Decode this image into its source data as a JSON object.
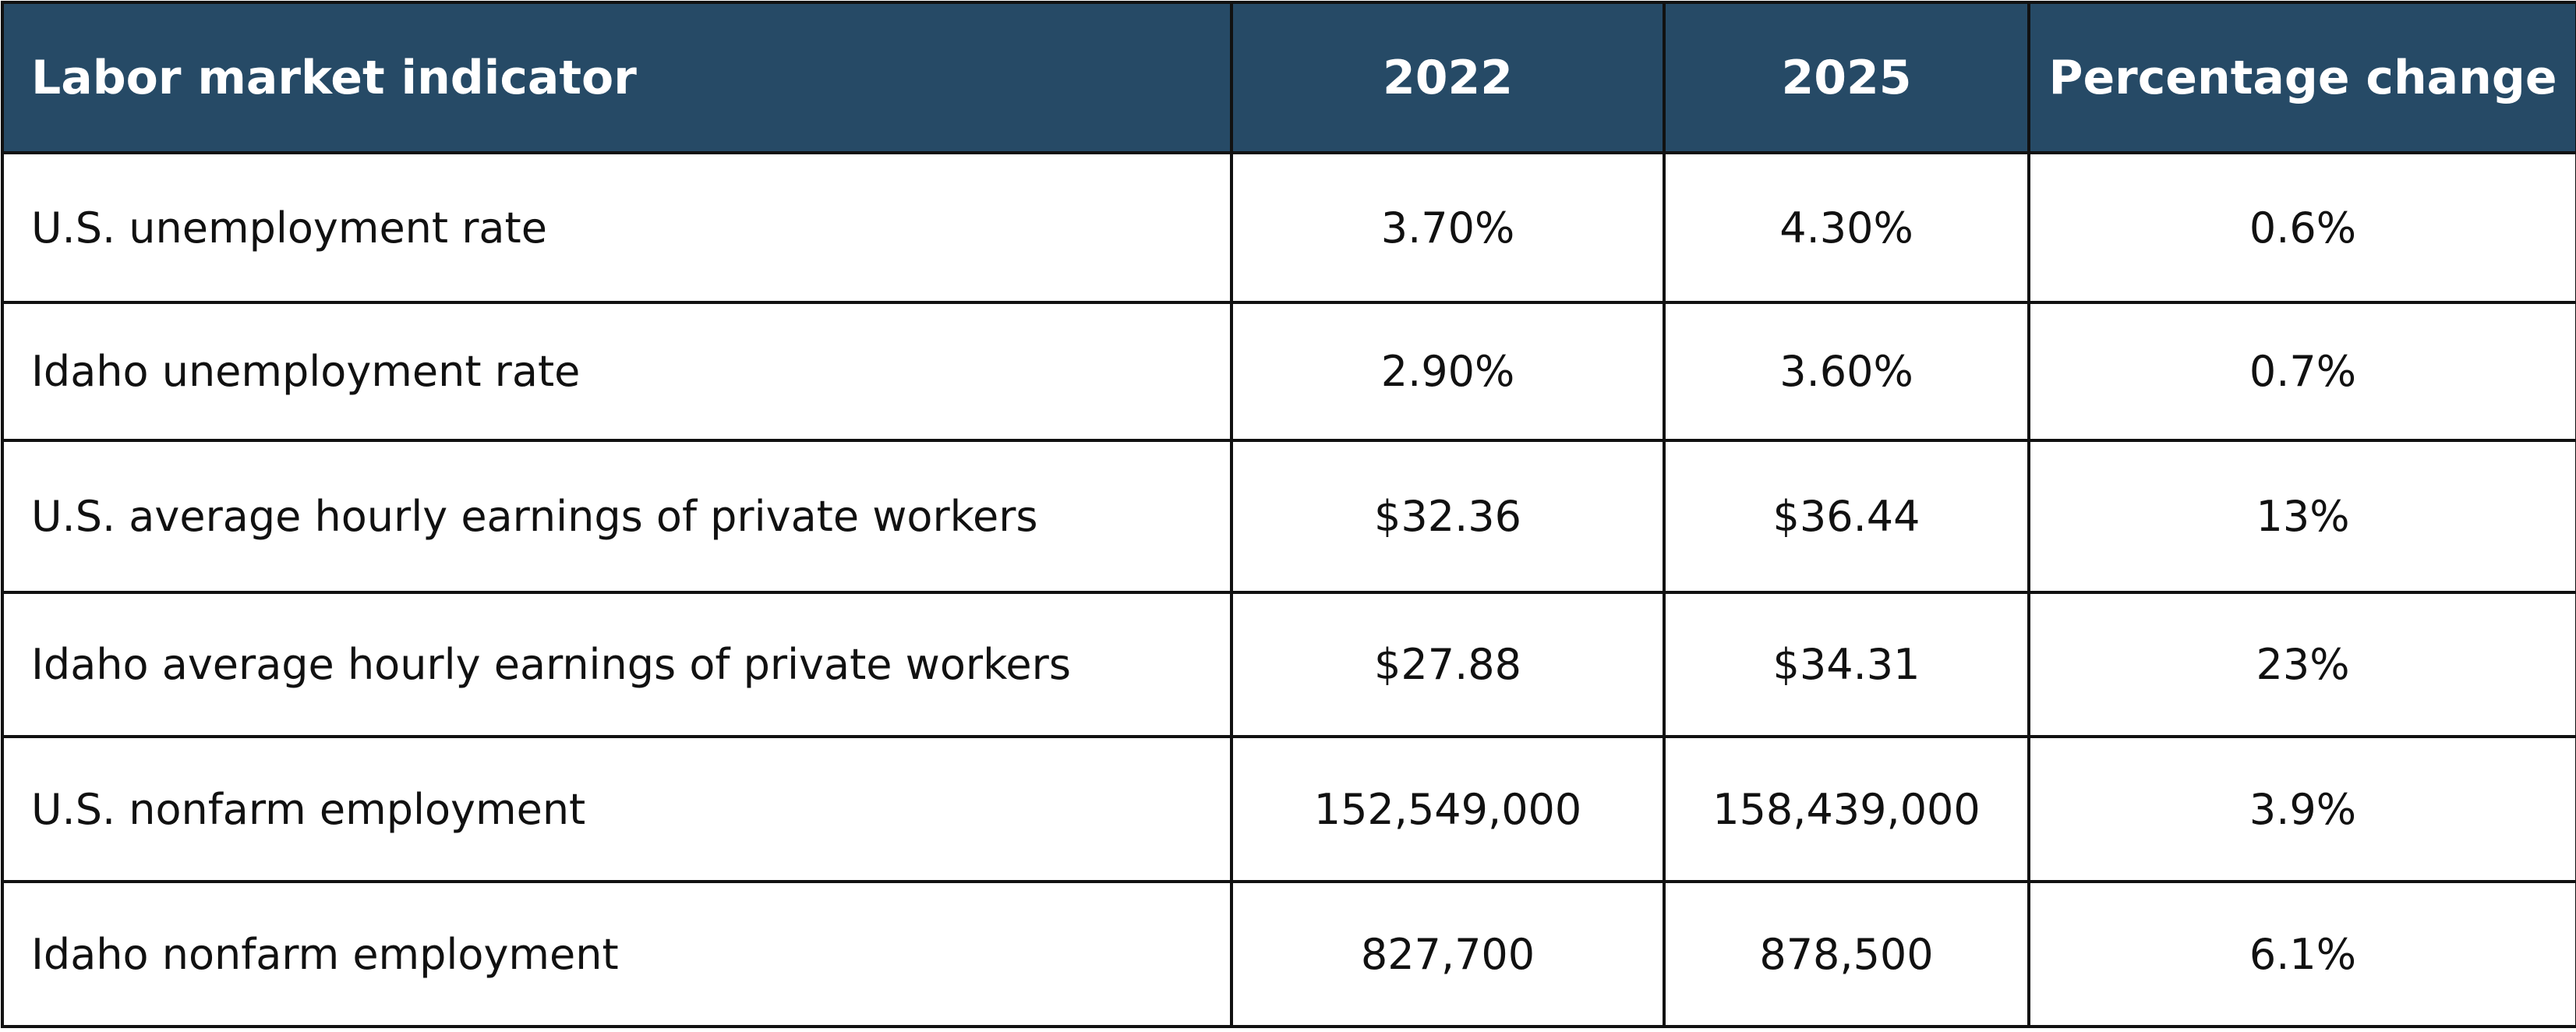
{
  "table": {
    "headers": [
      "Labor market indicator",
      "2022",
      "2025",
      "Percentage change"
    ],
    "rows": [
      [
        "U.S. unemployment rate",
        "3.70%",
        "4.30%",
        "0.6%"
      ],
      [
        "Idaho unemployment rate",
        "2.90%",
        "3.60%",
        "0.7%"
      ],
      [
        "U.S. average hourly earnings of private workers",
        "$32.36",
        "$36.44",
        "13%"
      ],
      [
        "Idaho average hourly earnings of private workers",
        "$27.88",
        "$34.31",
        "23%"
      ],
      [
        "U.S. nonfarm employment",
        "152,549,000",
        "158,439,000",
        "3.9%"
      ],
      [
        "Idaho nonfarm employment",
        "827,700",
        "878,500",
        "6.1%"
      ]
    ]
  },
  "colors": {
    "header_background": "#264a66",
    "header_text": "#ffffff",
    "border": "#111111"
  }
}
